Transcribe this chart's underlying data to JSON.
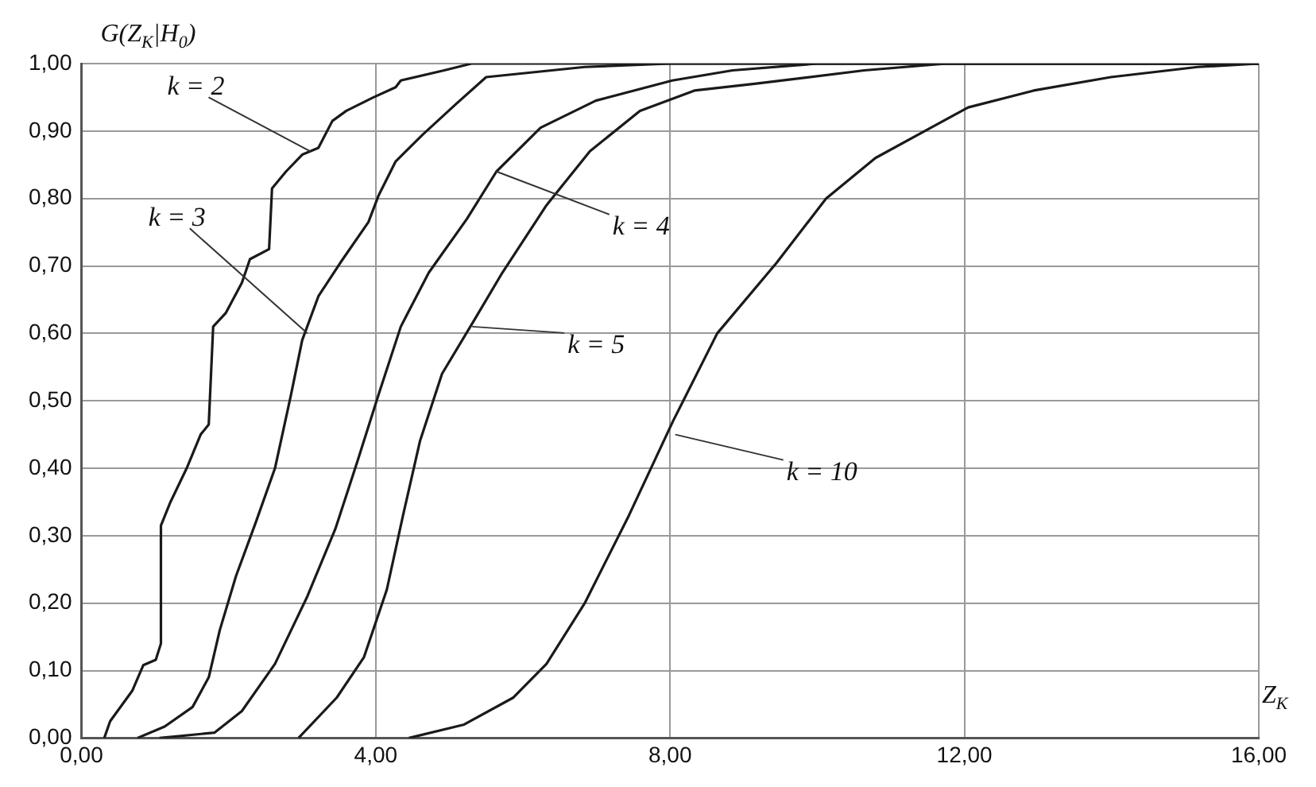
{
  "chart_data": {
    "type": "line",
    "ylabel": "G(Z$_{K}$|H$_{0}$)",
    "xlabel": "Z$_{K}$",
    "xlim": [
      0,
      16
    ],
    "ylim": [
      0,
      1
    ],
    "xticks": [
      {
        "value": 0,
        "label": "0,00"
      },
      {
        "value": 4,
        "label": "4,00"
      },
      {
        "value": 8,
        "label": "8,00"
      },
      {
        "value": 12,
        "label": "12,00"
      },
      {
        "value": 16,
        "label": "16,00"
      }
    ],
    "yticks": [
      {
        "value": 0,
        "label": "0,00"
      },
      {
        "value": 0.1,
        "label": "0,10"
      },
      {
        "value": 0.2,
        "label": "0,20"
      },
      {
        "value": 0.3,
        "label": "0,30"
      },
      {
        "value": 0.4,
        "label": "0,40"
      },
      {
        "value": 0.5,
        "label": "0,50"
      },
      {
        "value": 0.6,
        "label": "0,60"
      },
      {
        "value": 0.7,
        "label": "0,70"
      },
      {
        "value": 0.8,
        "label": "0,80"
      },
      {
        "value": 0.9,
        "label": "0,90"
      },
      {
        "value": 1,
        "label": "1,00"
      }
    ],
    "grid": true,
    "legend": false,
    "marker": "none",
    "line_style": "solid",
    "series": [
      {
        "color": "#1a1a1a",
        "x": [
          0.31,
          0.39,
          0.69,
          0.84,
          1.01,
          1.08,
          1.08,
          1.21,
          1.43,
          1.62,
          1.73,
          1.79,
          1.96,
          2.18,
          2.29,
          2.55,
          2.59,
          2.78,
          3.0,
          3.22,
          3.41,
          3.6,
          3.97,
          4.27,
          4.34,
          4.93,
          5.3,
          16
        ],
        "values": [
          0,
          0.025,
          0.07,
          0.108,
          0.116,
          0.14,
          0.315,
          0.35,
          0.4,
          0.45,
          0.465,
          0.61,
          0.63,
          0.675,
          0.71,
          0.725,
          0.815,
          0.84,
          0.865,
          0.875,
          0.915,
          0.93,
          0.95,
          0.965,
          0.975,
          0.99,
          1,
          1
        ]
      },
      {
        "color": "#1a1a1a",
        "x": [
          0.76,
          1.13,
          1.51,
          1.73,
          1.88,
          2.1,
          2.37,
          2.63,
          2.85,
          3.0,
          3.22,
          3.52,
          3.9,
          4.04,
          4.27,
          4.64,
          5.09,
          5.5,
          6.84,
          8,
          16
        ],
        "values": [
          0,
          0.017,
          0.046,
          0.09,
          0.16,
          0.24,
          0.32,
          0.4,
          0.51,
          0.59,
          0.655,
          0.705,
          0.765,
          0.805,
          0.855,
          0.895,
          0.94,
          0.98,
          0.995,
          1,
          1
        ]
      },
      {
        "color": "#1a1a1a",
        "x": [
          1.06,
          1.81,
          2.18,
          2.63,
          3.07,
          3.45,
          3.75,
          4.04,
          4.34,
          4.72,
          5.24,
          5.64,
          6.24,
          6.99,
          8.03,
          8.85,
          10,
          16
        ],
        "values": [
          0,
          0.008,
          0.04,
          0.11,
          0.21,
          0.31,
          0.41,
          0.51,
          0.61,
          0.69,
          0.77,
          0.84,
          0.905,
          0.945,
          0.975,
          0.99,
          1,
          1
        ]
      },
      {
        "color": "#1a1a1a",
        "x": [
          2.95,
          3.47,
          3.84,
          4.15,
          4.37,
          4.6,
          4.9,
          5.34,
          5.72,
          6.32,
          6.91,
          7.59,
          8.33,
          9.15,
          10.64,
          11.75,
          16
        ],
        "values": [
          0,
          0.06,
          0.12,
          0.22,
          0.33,
          0.44,
          0.54,
          0.62,
          0.69,
          0.79,
          0.87,
          0.93,
          0.96,
          0.97,
          0.99,
          1,
          1
        ]
      },
      {
        "color": "#1a1a1a",
        "x": [
          4.45,
          5.2,
          5.87,
          6.32,
          6.84,
          7.44,
          8.04,
          8.64,
          9.45,
          10.12,
          10.79,
          11.46,
          12.05,
          12.94,
          13.99,
          15.17,
          16
        ],
        "values": [
          0,
          0.02,
          0.06,
          0.11,
          0.2,
          0.33,
          0.47,
          0.6,
          0.705,
          0.8,
          0.86,
          0.9,
          0.935,
          0.96,
          0.98,
          0.995,
          1
        ]
      }
    ],
    "annotations": [
      {
        "text": "k = 2",
        "x": 3.11,
        "y": 0.87
      },
      {
        "text": "k = 3",
        "x": 3.07,
        "y": 0.6
      },
      {
        "text": "k = 4",
        "x": 5.64,
        "y": 0.84
      },
      {
        "text": "k = 5",
        "x": 5.31,
        "y": 0.61
      },
      {
        "text": "k = 10",
        "x": 8.07,
        "y": 0.45
      }
    ]
  }
}
